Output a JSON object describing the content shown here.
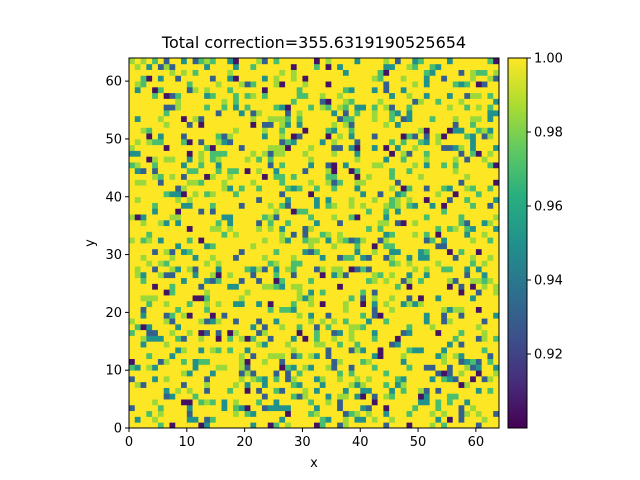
{
  "chart_data": {
    "type": "heatmap",
    "title": "Total correction=355.6319190525654",
    "xlabel": "x",
    "ylabel": "y",
    "xlim": [
      0,
      64
    ],
    "ylim": [
      0,
      64
    ],
    "xticks": [
      "0",
      "10",
      "20",
      "30",
      "40",
      "50",
      "60"
    ],
    "yticks": [
      "0",
      "10",
      "20",
      "30",
      "40",
      "50",
      "60"
    ],
    "grid_size": [
      64,
      64
    ],
    "colormap": "viridis",
    "colorbar": {
      "min": 0.9,
      "max": 1.0,
      "ticks": [
        "0.92",
        "0.94",
        "0.96",
        "0.98",
        "1.00"
      ]
    },
    "value_distribution": {
      "mostly": 1.0,
      "scattered_lower_values": [
        0.985,
        0.97,
        0.95,
        0.93,
        0.905
      ],
      "note": "pixel grid of correction factors, majority at 1.0 with sparse random lower cells"
    },
    "seed": 355
  }
}
